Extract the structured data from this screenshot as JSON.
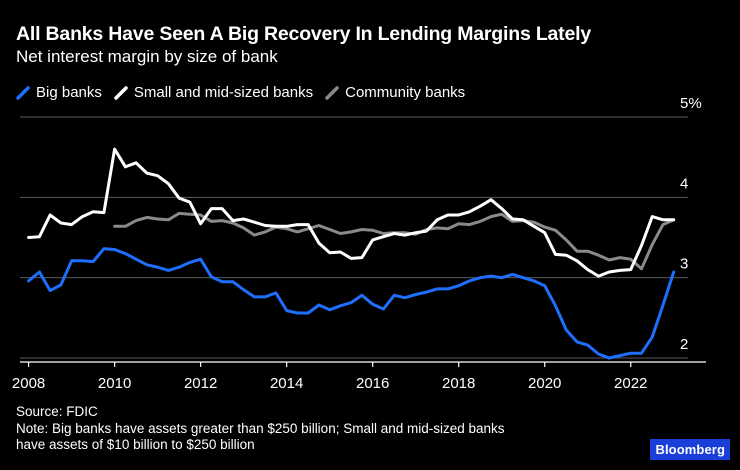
{
  "header": {
    "title": "All Banks Have Seen A Big Recovery In Lending Margins Lately",
    "subtitle": "Net interest margin by size of bank"
  },
  "legend": {
    "items": [
      {
        "label": "Big banks",
        "color": "#1f6fff"
      },
      {
        "label": "Small and mid-sized banks",
        "color": "#ffffff"
      },
      {
        "label": "Community banks",
        "color": "#8a8a8a"
      }
    ]
  },
  "footer": {
    "source": "Source: FDIC",
    "note_line1": "Note: Big banks have assets greater than $250 billion; Small and mid-sized banks",
    "note_line2": "have assets of $10 billion to $250 billion"
  },
  "brand": "Bloomberg",
  "chart_data": {
    "type": "line",
    "title": "All Banks Have Seen A Big Recovery In Lending Margins Lately",
    "subtitle": "Net interest margin by size of bank",
    "xlabel": "",
    "ylabel": "",
    "xlim": [
      2007.8,
      2023.75
    ],
    "ylim": [
      1.95,
      5.05
    ],
    "x_ticks": [
      2008,
      2010,
      2012,
      2014,
      2016,
      2018,
      2020,
      2022
    ],
    "x_tick_labels": [
      "2008",
      "2010",
      "2012",
      "2014",
      "2016",
      "2018",
      "2020",
      "2022"
    ],
    "y_ticks": [
      2,
      3,
      4,
      5
    ],
    "y_tick_labels": [
      "2",
      "3",
      "4",
      "5%"
    ],
    "grid": true,
    "legend_position": "top-left",
    "series": [
      {
        "name": "Big banks",
        "color": "#1f6fff",
        "x": [
          2008.0,
          2008.25,
          2008.5,
          2008.75,
          2009.0,
          2009.25,
          2009.5,
          2009.75,
          2010.0,
          2010.25,
          2010.5,
          2010.75,
          2011.0,
          2011.25,
          2011.5,
          2011.75,
          2012.0,
          2012.25,
          2012.5,
          2012.75,
          2013.0,
          2013.25,
          2013.5,
          2013.75,
          2014.0,
          2014.25,
          2014.5,
          2014.75,
          2015.0,
          2015.25,
          2015.5,
          2015.75,
          2016.0,
          2016.25,
          2016.5,
          2016.75,
          2017.0,
          2017.25,
          2017.5,
          2017.75,
          2018.0,
          2018.25,
          2018.5,
          2018.75,
          2019.0,
          2019.25,
          2019.5,
          2019.75,
          2020.0,
          2020.25,
          2020.5,
          2020.75,
          2021.0,
          2021.25,
          2021.5,
          2021.75,
          2022.0,
          2022.25,
          2022.5,
          2022.75,
          2023.0
        ],
        "values": [
          2.96,
          3.07,
          2.84,
          2.91,
          3.21,
          3.21,
          3.2,
          3.36,
          3.35,
          3.3,
          3.23,
          3.16,
          3.13,
          3.09,
          3.13,
          3.19,
          3.23,
          3.01,
          2.95,
          2.95,
          2.85,
          2.76,
          2.76,
          2.81,
          2.59,
          2.56,
          2.56,
          2.66,
          2.6,
          2.65,
          2.69,
          2.78,
          2.67,
          2.61,
          2.78,
          2.75,
          2.79,
          2.82,
          2.86,
          2.86,
          2.9,
          2.96,
          3.0,
          3.02,
          3.0,
          3.04,
          3.0,
          2.96,
          2.9,
          2.65,
          2.35,
          2.2,
          2.16,
          2.05,
          2.0,
          2.03,
          2.06,
          2.06,
          2.26,
          2.66,
          3.07
        ]
      },
      {
        "name": "Small and mid-sized banks",
        "color": "#ffffff",
        "x": [
          2008.0,
          2008.25,
          2008.5,
          2008.75,
          2009.0,
          2009.25,
          2009.5,
          2009.75,
          2010.0,
          2010.25,
          2010.5,
          2010.75,
          2011.0,
          2011.25,
          2011.5,
          2011.75,
          2012.0,
          2012.25,
          2012.5,
          2012.75,
          2013.0,
          2013.25,
          2013.5,
          2013.75,
          2014.0,
          2014.25,
          2014.5,
          2014.75,
          2015.0,
          2015.25,
          2015.5,
          2015.75,
          2016.0,
          2016.25,
          2016.5,
          2016.75,
          2017.0,
          2017.25,
          2017.5,
          2017.75,
          2018.0,
          2018.25,
          2018.5,
          2018.75,
          2019.0,
          2019.25,
          2019.5,
          2019.75,
          2020.0,
          2020.25,
          2020.5,
          2020.75,
          2021.0,
          2021.25,
          2021.5,
          2021.75,
          2022.0,
          2022.25,
          2022.5,
          2022.75,
          2023.0
        ],
        "values": [
          3.5,
          3.51,
          3.78,
          3.68,
          3.66,
          3.76,
          3.82,
          3.81,
          4.6,
          4.38,
          4.43,
          4.3,
          4.27,
          4.17,
          3.99,
          3.94,
          3.67,
          3.86,
          3.86,
          3.71,
          3.73,
          3.69,
          3.65,
          3.64,
          3.64,
          3.66,
          3.66,
          3.43,
          3.31,
          3.32,
          3.24,
          3.25,
          3.47,
          3.51,
          3.55,
          3.53,
          3.56,
          3.58,
          3.72,
          3.78,
          3.78,
          3.82,
          3.89,
          3.97,
          3.86,
          3.73,
          3.72,
          3.64,
          3.56,
          3.29,
          3.28,
          3.21,
          3.1,
          3.02,
          3.07,
          3.09,
          3.1,
          3.4,
          3.76,
          3.72,
          3.72
        ]
      },
      {
        "name": "Community banks",
        "color": "#8a8a8a",
        "x": [
          2010.0,
          2010.25,
          2010.5,
          2010.75,
          2011.0,
          2011.25,
          2011.5,
          2011.75,
          2012.0,
          2012.25,
          2012.5,
          2012.75,
          2013.0,
          2013.25,
          2013.5,
          2013.75,
          2014.0,
          2014.25,
          2014.5,
          2014.75,
          2015.0,
          2015.25,
          2015.5,
          2015.75,
          2016.0,
          2016.25,
          2016.5,
          2016.75,
          2017.0,
          2017.25,
          2017.5,
          2017.75,
          2018.0,
          2018.25,
          2018.5,
          2018.75,
          2019.0,
          2019.25,
          2019.5,
          2019.75,
          2020.0,
          2020.25,
          2020.5,
          2020.75,
          2021.0,
          2021.25,
          2021.5,
          2021.75,
          2022.0,
          2022.25,
          2022.5,
          2022.75,
          2023.0
        ],
        "values": [
          3.64,
          3.64,
          3.71,
          3.75,
          3.73,
          3.72,
          3.8,
          3.79,
          3.78,
          3.7,
          3.71,
          3.68,
          3.62,
          3.53,
          3.57,
          3.63,
          3.61,
          3.57,
          3.61,
          3.65,
          3.6,
          3.55,
          3.57,
          3.6,
          3.59,
          3.55,
          3.56,
          3.56,
          3.54,
          3.6,
          3.62,
          3.61,
          3.67,
          3.66,
          3.7,
          3.76,
          3.79,
          3.7,
          3.71,
          3.69,
          3.63,
          3.59,
          3.47,
          3.33,
          3.33,
          3.28,
          3.22,
          3.25,
          3.23,
          3.11,
          3.41,
          3.66,
          3.72
        ]
      }
    ]
  }
}
